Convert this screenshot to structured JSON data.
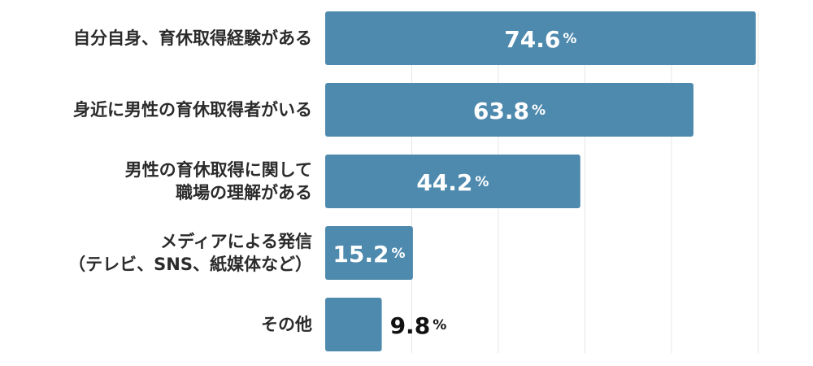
{
  "chart_data": {
    "type": "bar",
    "orientation": "horizontal",
    "categories": [
      [
        "自分自身、育休取得経験がある"
      ],
      [
        "身近に男性の育休取得者がいる"
      ],
      [
        "男性の育休取得に関して",
        "職場の理解がある"
      ],
      [
        "メディアによる発信",
        "（テレビ、SNS、紙媒体など）"
      ],
      [
        "その他"
      ]
    ],
    "values": [
      74.6,
      63.8,
      44.2,
      15.2,
      9.8
    ],
    "value_labels": [
      "74.6",
      "63.8",
      "44.2",
      "15.2",
      "9.8"
    ],
    "unit": "%",
    "xlim": [
      0,
      80
    ],
    "grid": true,
    "colors": {
      "bar": "#4e8aae",
      "grid": "#e6e6e6",
      "label_inside": "#ffffff",
      "label_outside": "#111111",
      "category_text": "#2b2b2b"
    }
  }
}
